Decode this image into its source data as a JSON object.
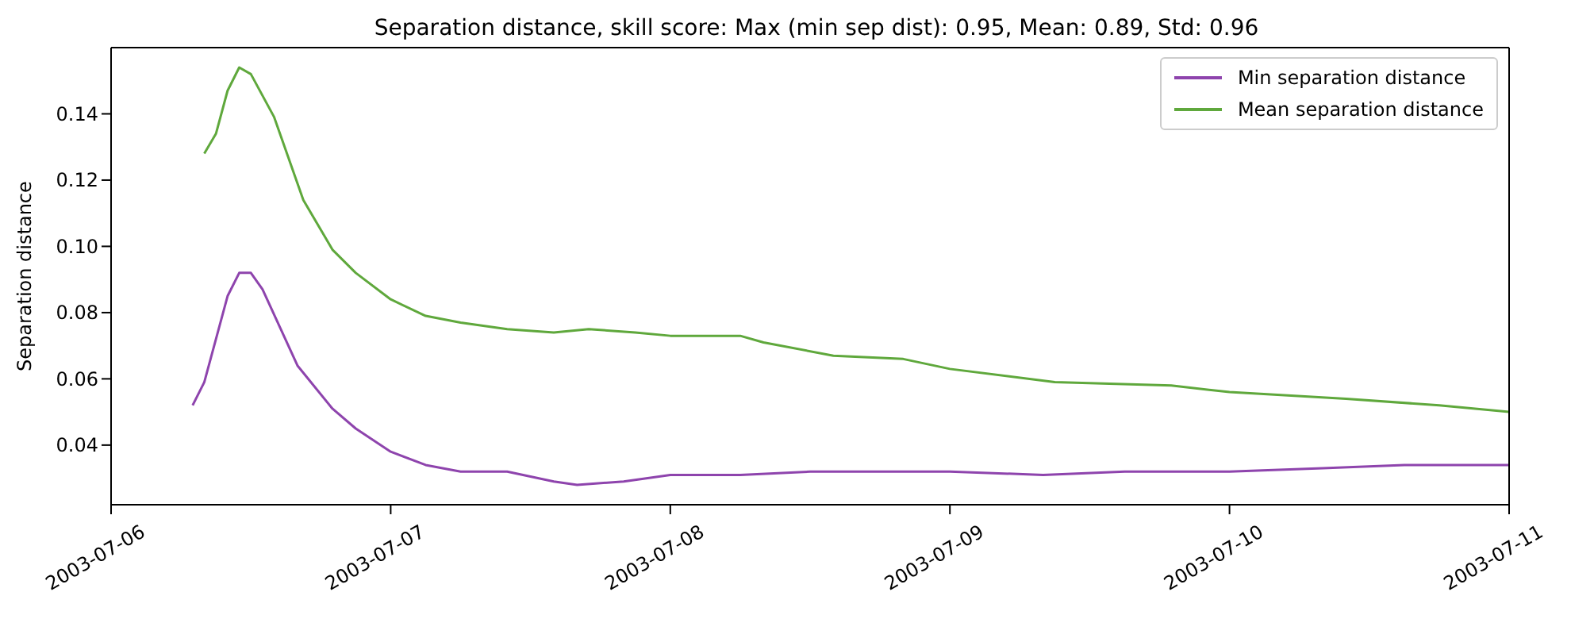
{
  "chart_data": {
    "type": "line",
    "title": "Separation distance, skill score: Max (min sep dist): 0.95, Mean: 0.89, Std: 0.96",
    "ylabel": "Separation distance",
    "xlim": [
      "2003-07-06",
      "2003-07-11"
    ],
    "xticks": [
      "2003-07-06",
      "2003-07-07",
      "2003-07-08",
      "2003-07-09",
      "2003-07-10",
      "2003-07-11"
    ],
    "ylim": [
      0.022,
      0.16
    ],
    "yticks": [
      0.04,
      0.06,
      0.08,
      {
        "value": 0.1,
        "label": "0.10"
      },
      0.12,
      0.14
    ],
    "grid": false,
    "legend": "top right",
    "marker": "none",
    "line_style": "solid",
    "series": [
      {
        "name": "Min separation distance",
        "color": "#8e44ad",
        "x": [
          "2003-07-06T07:00",
          "2003-07-06T08:00",
          "2003-07-06T10:00",
          "2003-07-06T11:00",
          "2003-07-06T12:00",
          "2003-07-06T13:00",
          "2003-07-06T16:00",
          "2003-07-06T19:00",
          "2003-07-06T21:00",
          "2003-07-07T00:00",
          "2003-07-07T03:00",
          "2003-07-07T06:00",
          "2003-07-07T10:00",
          "2003-07-07T14:00",
          "2003-07-07T16:00",
          "2003-07-07T20:00",
          "2003-07-08T00:00",
          "2003-07-08T06:00",
          "2003-07-08T12:00",
          "2003-07-08T19:00",
          "2003-07-09T00:00",
          "2003-07-09T08:00",
          "2003-07-09T15:00",
          "2003-07-10T00:00",
          "2003-07-10T08:00",
          "2003-07-10T15:00",
          "2003-07-11T00:00"
        ],
        "values": [
          0.052,
          0.059,
          0.085,
          0.092,
          0.092,
          0.087,
          0.064,
          0.051,
          0.045,
          0.038,
          0.034,
          0.032,
          0.032,
          0.029,
          0.028,
          0.029,
          0.031,
          0.031,
          0.032,
          0.032,
          0.032,
          0.031,
          0.032,
          0.032,
          0.033,
          0.034,
          0.034
        ]
      },
      {
        "name": "Mean separation distance",
        "color": "#5fa83c",
        "x": [
          "2003-07-06T08:00",
          "2003-07-06T09:00",
          "2003-07-06T10:00",
          "2003-07-06T11:00",
          "2003-07-06T12:00",
          "2003-07-06T14:00",
          "2003-07-06T16:30",
          "2003-07-06T19:00",
          "2003-07-06T21:00",
          "2003-07-07T00:00",
          "2003-07-07T03:00",
          "2003-07-07T06:00",
          "2003-07-07T10:00",
          "2003-07-07T14:00",
          "2003-07-07T17:00",
          "2003-07-07T21:00",
          "2003-07-08T00:00",
          "2003-07-08T06:00",
          "2003-07-08T08:00",
          "2003-07-08T14:00",
          "2003-07-08T20:00",
          "2003-07-09T00:00",
          "2003-07-09T09:00",
          "2003-07-09T19:00",
          "2003-07-10T00:00",
          "2003-07-10T10:00",
          "2003-07-10T18:00",
          "2003-07-11T00:00"
        ],
        "values": [
          0.128,
          0.134,
          0.147,
          0.154,
          0.152,
          0.139,
          0.114,
          0.099,
          0.092,
          0.084,
          0.079,
          0.077,
          0.075,
          0.074,
          0.075,
          0.074,
          0.073,
          0.073,
          0.071,
          0.067,
          0.066,
          0.063,
          0.059,
          0.058,
          0.056,
          0.054,
          0.052,
          0.05
        ]
      }
    ]
  }
}
